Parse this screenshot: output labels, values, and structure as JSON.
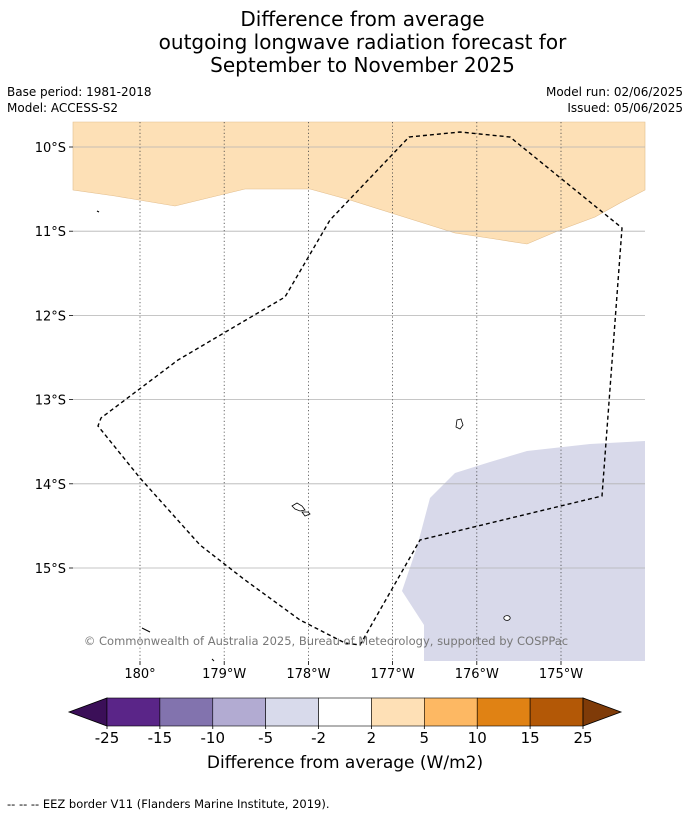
{
  "title": {
    "line1": "Difference from average",
    "line2": "outgoing longwave radiation forecast for",
    "line3": "September to November 2025"
  },
  "meta": {
    "base_period": "Base period: 1981-2018",
    "model": "Model: ACCESS-S2",
    "model_run": "Model run: 02/06/2025",
    "issued": "Issued: 05/06/2025"
  },
  "map": {
    "lat_labels": [
      "10°S",
      "11°S",
      "12°S",
      "13°S",
      "14°S",
      "15°S"
    ],
    "lat_values": [
      -10,
      -11,
      -12,
      -13,
      -14,
      -15
    ],
    "lon_labels": [
      "180°",
      "179°W",
      "178°W",
      "177°W",
      "176°W",
      "175°W"
    ],
    "lon_values": [
      180,
      -179,
      -178,
      -177,
      -176,
      -175
    ],
    "copyright": "© Commonwealth of Australia 2025, Bureau of Meteorology, supported by COSPPac",
    "anomaly_regions": [
      {
        "category": "2 to 5",
        "color": "#fde0b6"
      },
      {
        "category": "-5 to -2",
        "color": "#d8d9ea"
      }
    ]
  },
  "colorbar": {
    "title": "Difference from average (W/m2)",
    "ticks": [
      "-25",
      "-15",
      "-10",
      "-5",
      "-2",
      "2",
      "5",
      "10",
      "15",
      "25"
    ],
    "under_color": "#3b0f58",
    "over_color": "#7f3b08",
    "colors": [
      "#5a2588",
      "#8273ae",
      "#b2abd2",
      "#d8daeb",
      "#ffffff",
      "#fee0b6",
      "#fdb863",
      "#e08214",
      "#b35806"
    ]
  },
  "footer": "--  --  -- EEZ border V11 (Flanders Marine Institute, 2019)."
}
